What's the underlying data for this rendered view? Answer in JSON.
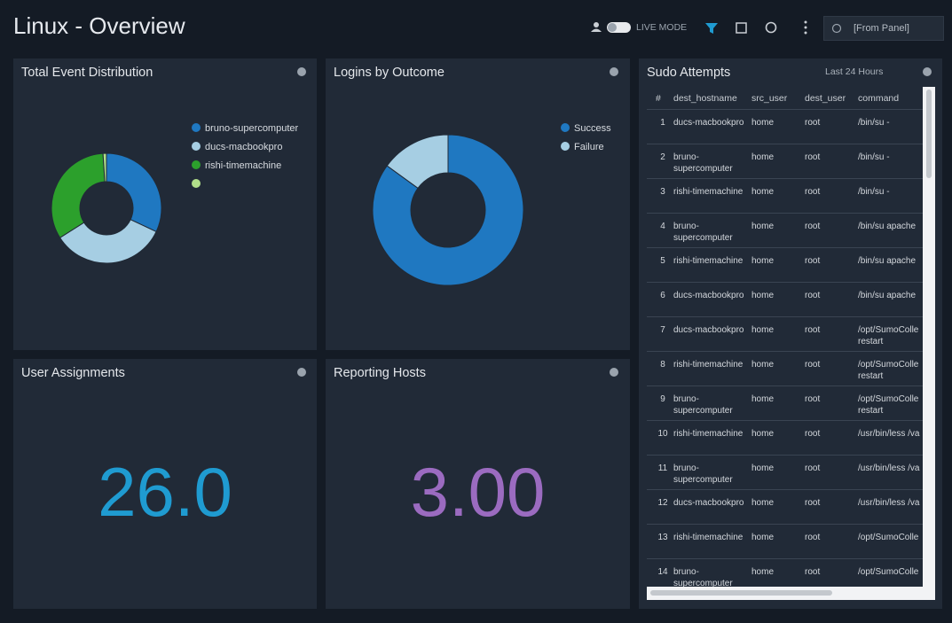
{
  "header": {
    "title": "Linux - Overview",
    "live_mode": "LIVE MODE",
    "time_range": "[From Panel]"
  },
  "panels": {
    "event_distribution": {
      "title": "Total Event Distribution",
      "type": "pie",
      "categories": [
        "bruno-supercomputer",
        "ducs-macbookpro",
        "rishi-timemachine",
        null
      ],
      "values": [
        32,
        34,
        33,
        1
      ],
      "colors": [
        "#1f78c1",
        "#a6cee3",
        "#2ca02c",
        "#b2df8a"
      ]
    },
    "logins": {
      "title": "Logins by Outcome",
      "type": "pie",
      "categories": [
        "Success",
        "Failure"
      ],
      "values": [
        85,
        15
      ],
      "colors": [
        "#1f78c1",
        "#a6cee3"
      ]
    },
    "user_assignments": {
      "title": "User Assignments",
      "value": "26.0"
    },
    "reporting_hosts": {
      "title": "Reporting Hosts",
      "value": "3.00"
    },
    "sudo_attempts": {
      "title": "Sudo Attempts",
      "time_range": "Last 24 Hours",
      "table": {
        "columns": [
          "#",
          "dest_hostname",
          "src_user",
          "dest_user",
          "command"
        ],
        "rows": [
          [
            1,
            "ducs-macbookpro",
            "home",
            "root",
            "/bin/su -"
          ],
          [
            2,
            "bruno-supercomputer",
            "home",
            "root",
            "/bin/su -"
          ],
          [
            3,
            "rishi-timemachine",
            "home",
            "root",
            "/bin/su -"
          ],
          [
            4,
            "bruno-supercomputer",
            "home",
            "root",
            "/bin/su apache"
          ],
          [
            5,
            "rishi-timemachine",
            "home",
            "root",
            "/bin/su apache"
          ],
          [
            6,
            "ducs-macbookpro",
            "home",
            "root",
            "/bin/su apache"
          ],
          [
            7,
            "ducs-macbookpro",
            "home",
            "root",
            "/opt/SumoColle restart"
          ],
          [
            8,
            "rishi-timemachine",
            "home",
            "root",
            "/opt/SumoColle restart"
          ],
          [
            9,
            "bruno-supercomputer",
            "home",
            "root",
            "/opt/SumoColle restart"
          ],
          [
            10,
            "rishi-timemachine",
            "home",
            "root",
            "/usr/bin/less /va"
          ],
          [
            11,
            "bruno-supercomputer",
            "home",
            "root",
            "/usr/bin/less /va"
          ],
          [
            12,
            "ducs-macbookpro",
            "home",
            "root",
            "/usr/bin/less /va"
          ],
          [
            13,
            "rishi-timemachine",
            "home",
            "root",
            "/opt/SumoColle"
          ],
          [
            14,
            "bruno-supercomputer",
            "home",
            "root",
            "/opt/SumoColle"
          ]
        ]
      }
    }
  }
}
